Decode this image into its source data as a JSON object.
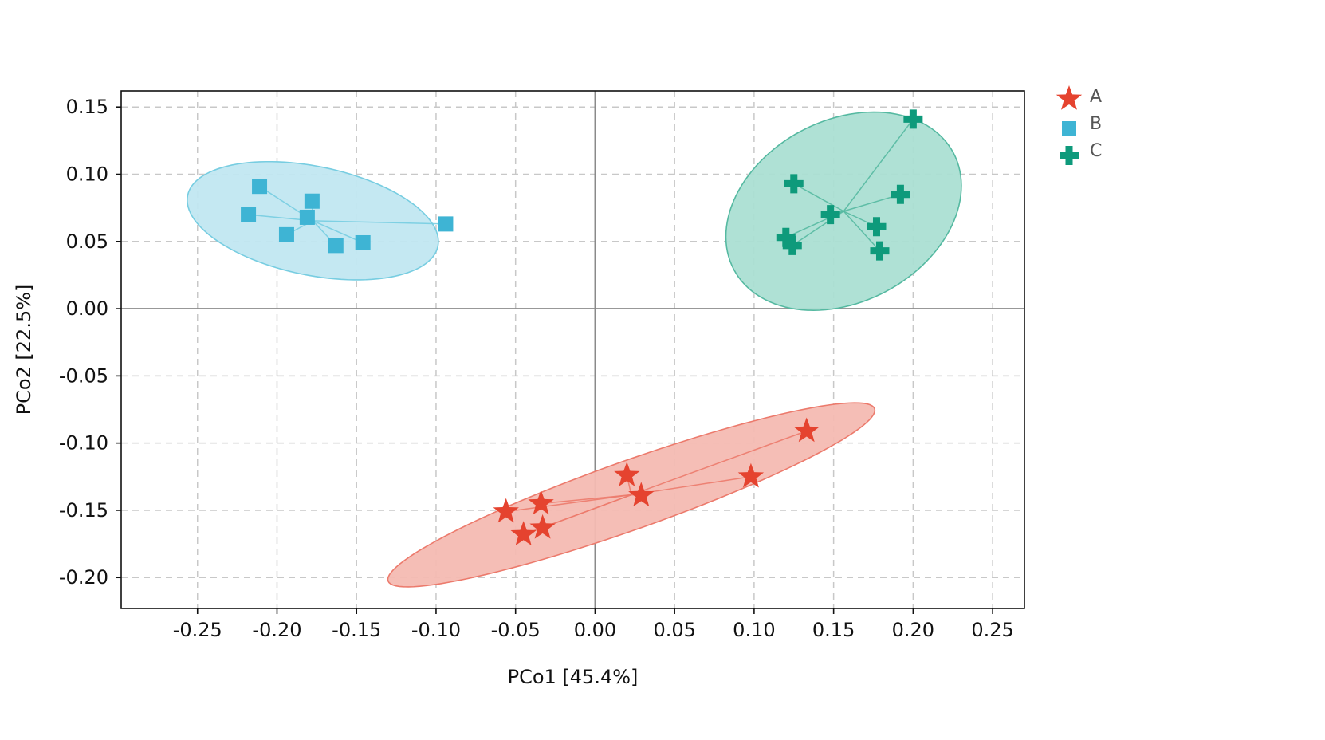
{
  "chart_data": {
    "type": "scatter",
    "title": "",
    "xlabel": "PCo1 [45.4%]",
    "ylabel": "PCo2 [22.5%]",
    "xlim": [
      -0.298,
      0.27
    ],
    "ylim": [
      -0.223,
      0.162
    ],
    "xticks": [
      -0.25,
      -0.2,
      -0.15,
      -0.1,
      -0.05,
      0.0,
      0.05,
      0.1,
      0.15,
      0.2,
      0.25
    ],
    "xtick_labels": [
      "-0.25",
      "-0.20",
      "-0.15",
      "-0.10",
      "-0.05",
      "0.00",
      "0.05",
      "0.10",
      "0.15",
      "0.20",
      "0.25"
    ],
    "yticks": [
      0.15,
      0.1,
      0.05,
      0.0,
      -0.05,
      -0.1,
      -0.15,
      -0.2
    ],
    "ytick_labels": [
      "0.15",
      "0.10",
      "0.05",
      "0.00",
      "-0.05",
      "-0.10",
      "-0.15",
      "-0.20"
    ],
    "grid": true,
    "legend_position": "outside-top-right",
    "series": [
      {
        "name": "A",
        "marker": "star",
        "color": "#e5432f",
        "ellipse_fill": "#f4bab2",
        "ellipse_stroke": "#ec7a6c",
        "centroid": [
          0.0228,
          -0.1385
        ],
        "ellipse": {
          "center": [
            0.0228,
            -0.1385
          ],
          "semi_major": 0.192,
          "semi_minor": 0.0255,
          "angle_deg": 19.5
        },
        "points": [
          {
            "x": -0.056,
            "y": -0.151
          },
          {
            "x": -0.045,
            "y": -0.168
          },
          {
            "x": -0.034,
            "y": -0.145
          },
          {
            "x": -0.033,
            "y": -0.163
          },
          {
            "x": 0.02,
            "y": -0.124
          },
          {
            "x": 0.029,
            "y": -0.139
          },
          {
            "x": 0.098,
            "y": -0.125
          },
          {
            "x": 0.133,
            "y": -0.091
          }
        ]
      },
      {
        "name": "B",
        "marker": "square",
        "color": "#3eb4d4",
        "ellipse_fill": "#c1e7f1",
        "ellipse_stroke": "#77cde1",
        "centroid": [
          -0.1775,
          0.0654
        ],
        "ellipse": {
          "center": [
            -0.1775,
            0.0654
          ],
          "semi_major": 0.095,
          "semi_minor": 0.0405,
          "angle_deg": -11.5
        },
        "points": [
          {
            "x": -0.218,
            "y": 0.07
          },
          {
            "x": -0.211,
            "y": 0.091
          },
          {
            "x": -0.194,
            "y": 0.055
          },
          {
            "x": -0.181,
            "y": 0.068
          },
          {
            "x": -0.178,
            "y": 0.08
          },
          {
            "x": -0.163,
            "y": 0.047
          },
          {
            "x": -0.146,
            "y": 0.049
          },
          {
            "x": -0.094,
            "y": 0.063
          }
        ]
      },
      {
        "name": "C",
        "marker": "plus",
        "color": "#0e9a7b",
        "ellipse_fill": "#abdfd3",
        "ellipse_stroke": "#55b9a1",
        "centroid": [
          0.1563,
          0.0725
        ],
        "ellipse": {
          "center": [
            0.1563,
            0.0725
          ],
          "semi_major": 0.0925,
          "semi_minor": 0.0675,
          "angle_deg": 28
        },
        "points": [
          {
            "x": 0.12,
            "y": 0.053
          },
          {
            "x": 0.124,
            "y": 0.047
          },
          {
            "x": 0.125,
            "y": 0.093
          },
          {
            "x": 0.148,
            "y": 0.07
          },
          {
            "x": 0.177,
            "y": 0.061
          },
          {
            "x": 0.179,
            "y": 0.043
          },
          {
            "x": 0.192,
            "y": 0.085
          },
          {
            "x": 0.2,
            "y": 0.141
          }
        ]
      }
    ]
  }
}
